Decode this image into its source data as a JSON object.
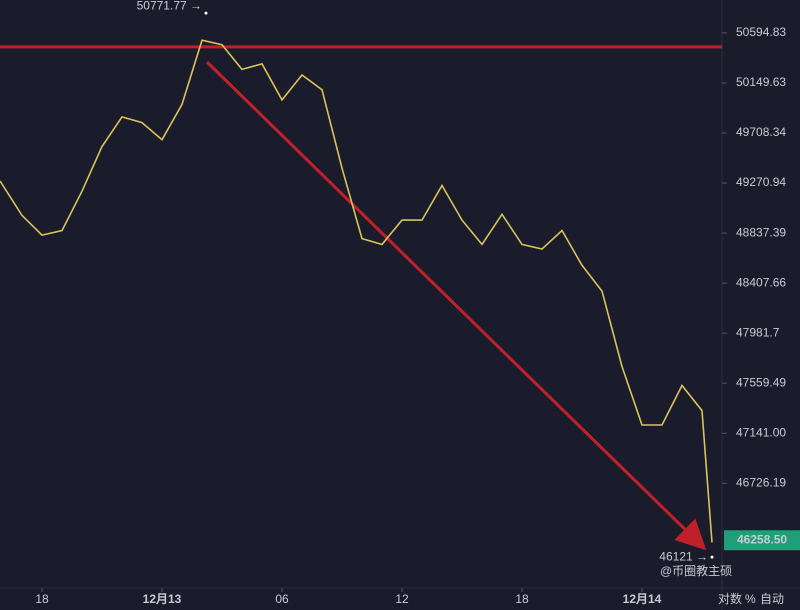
{
  "chart_data": {
    "type": "line",
    "x": [
      15.9,
      17,
      18,
      19,
      20,
      21,
      22,
      23,
      24,
      25,
      26,
      27,
      28,
      29,
      30,
      31,
      32,
      33,
      34,
      35,
      36,
      37,
      38,
      39,
      40,
      41,
      42,
      43,
      44,
      45,
      46,
      47,
      48,
      49,
      50,
      51,
      51.5
    ],
    "series": [
      {
        "color": "#d9c25a",
        "values": [
          49290,
          48990,
          48820,
          48860,
          49200,
          49590,
          49850,
          49800,
          49650,
          49960,
          50530,
          50490,
          50270,
          50320,
          50000,
          50220,
          50090,
          49400,
          48790,
          48740,
          48950,
          48950,
          49250,
          48950,
          48740,
          49000,
          48740,
          48700,
          48860,
          48560,
          48340,
          47700,
          47210,
          47210,
          47540,
          47330,
          46240
        ]
      }
    ],
    "xlim": [
      15.9,
      52
    ],
    "xticks": [
      {
        "value": 18,
        "label": "18"
      },
      {
        "value": 24,
        "label": "12月13"
      },
      {
        "value": 30,
        "label": "06"
      },
      {
        "value": 36,
        "label": "12"
      },
      {
        "value": 42,
        "label": "18"
      },
      {
        "value": 48,
        "label": "12月14"
      }
    ],
    "ylim": [
      45870,
      50890
    ],
    "log_scale": true,
    "yticks": [
      50594.83,
      50149.63,
      49708.34,
      49270.94,
      48837.39,
      48407.66,
      47981.7,
      {
        "value": 47559.49,
        "label": "47559.49"
      },
      {
        "value": 47141,
        "label": "47141.00"
      },
      46726.19
    ],
    "reference_line": {
      "value": 50470,
      "color": "#c0202a"
    },
    "high": {
      "label": "50771.77 →",
      "value": 50771.77,
      "x": 26.2
    },
    "low": {
      "label": "46121 →",
      "value": 46121,
      "x": 51.5
    },
    "last_price": {
      "label": "46258.50",
      "value": 46258.5,
      "color": "#1f9e78"
    },
    "scale_buttons": [
      "对数",
      "%",
      "自动"
    ],
    "watermark": "@币圈教主硕"
  }
}
